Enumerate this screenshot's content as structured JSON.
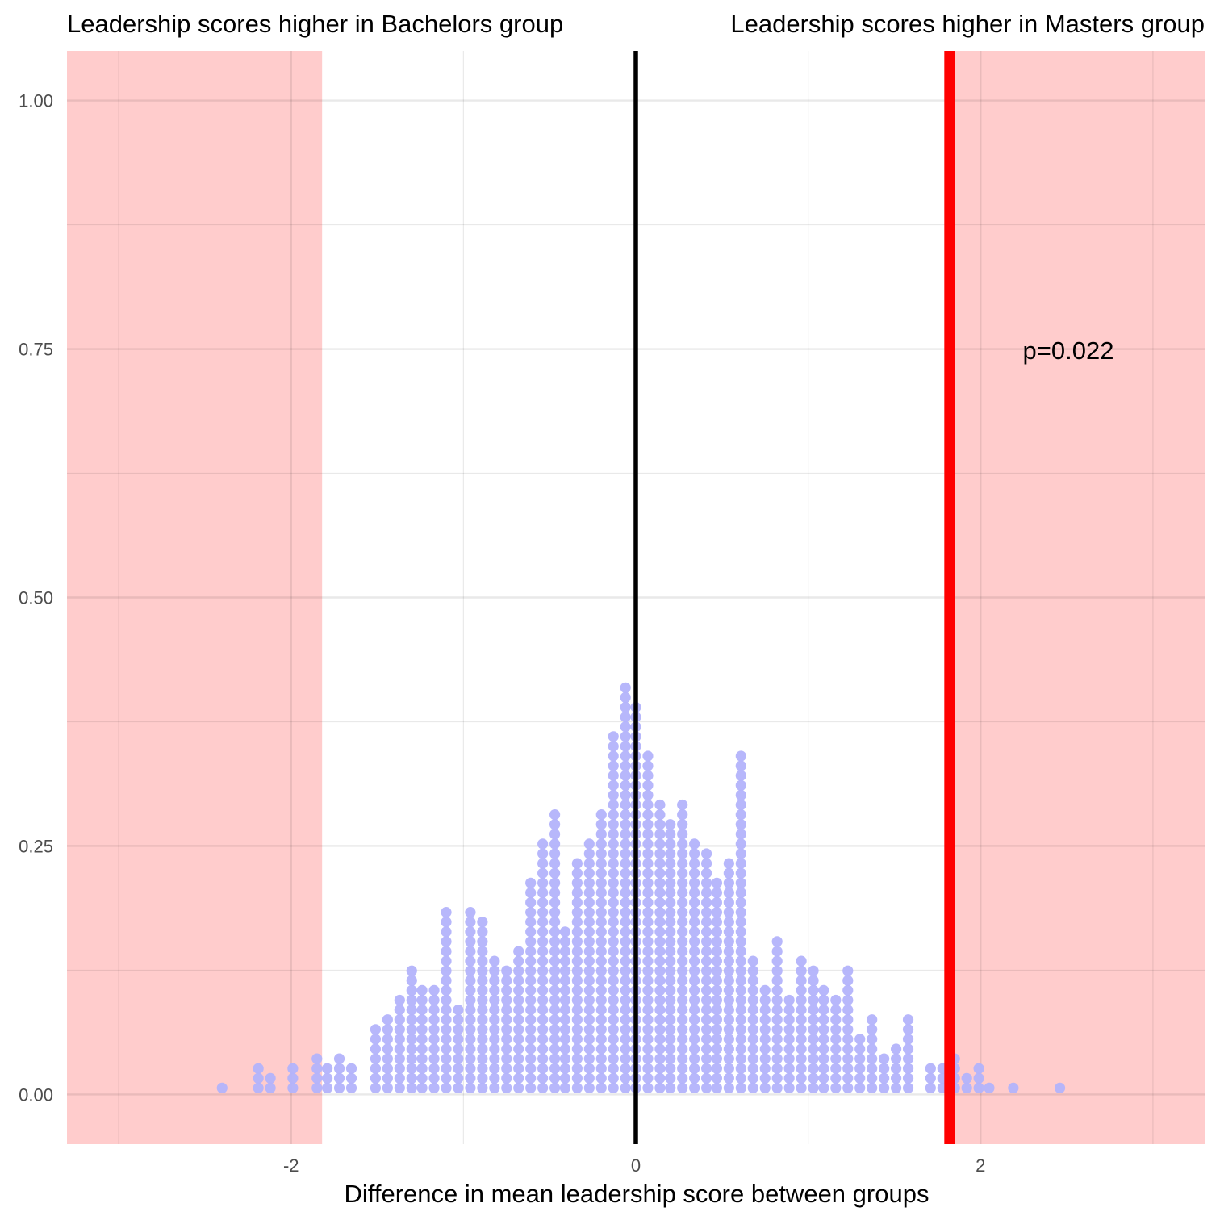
{
  "chart_data": {
    "type": "dotplot",
    "title": "",
    "xlabel": "Difference in mean leadership score between groups",
    "ylabel": "",
    "xlim": [
      -3.3,
      3.3
    ],
    "ylim": [
      -0.05,
      1.05
    ],
    "x_ticks": [
      -2,
      0,
      2
    ],
    "x_tick_labels": [
      "-2",
      "0",
      "2"
    ],
    "y_ticks": [
      0,
      0.25,
      0.5,
      0.75,
      1.0
    ],
    "y_tick_labels": [
      "0.00",
      "0.25",
      "0.50",
      "0.75",
      "1.00"
    ],
    "grid": true,
    "left_label": "Leadership scores higher in Bachelors group",
    "right_label": "Leadership scores higher in Masters group",
    "observed_difference": 1.82,
    "null_center": 0,
    "rejection_regions": [
      [
        -3.3,
        -1.82
      ],
      [
        1.82,
        3.3
      ]
    ],
    "annotation": "p=0.022",
    "colors": {
      "dots": "#b3b3fb",
      "rejection_region": "#ffcccc",
      "observed_line": "#ff0000",
      "center_line": "#000000"
    },
    "bins": {
      "x": [
        -2.4,
        -2.19,
        -2.12,
        -1.99,
        -1.85,
        -1.79,
        -1.72,
        -1.65,
        -1.51,
        -1.44,
        -1.37,
        -1.3,
        -1.24,
        -1.17,
        -1.1,
        -1.03,
        -0.96,
        -0.89,
        -0.82,
        -0.75,
        -0.68,
        -0.61,
        -0.54,
        -0.47,
        -0.41,
        -0.34,
        -0.27,
        -0.2,
        -0.13,
        -0.06,
        0.0,
        0.07,
        0.14,
        0.2,
        0.27,
        0.34,
        0.41,
        0.47,
        0.54,
        0.61,
        0.68,
        0.75,
        0.82,
        0.89,
        0.96,
        1.03,
        1.09,
        1.16,
        1.23,
        1.3,
        1.37,
        1.44,
        1.51,
        1.58,
        1.71,
        1.78,
        1.85,
        1.92,
        1.99,
        2.05,
        2.19,
        2.46
      ],
      "counts": [
        1,
        3,
        2,
        3,
        4,
        3,
        4,
        3,
        7,
        8,
        10,
        13,
        11,
        11,
        19,
        9,
        19,
        18,
        14,
        13,
        15,
        22,
        26,
        29,
        17,
        24,
        26,
        29,
        37,
        42,
        40,
        35,
        30,
        28,
        30,
        26,
        25,
        22,
        24,
        35,
        14,
        11,
        16,
        10,
        14,
        13,
        11,
        10,
        13,
        6,
        8,
        4,
        5,
        8,
        3,
        3,
        4,
        2,
        3,
        1,
        1,
        1
      ]
    }
  }
}
